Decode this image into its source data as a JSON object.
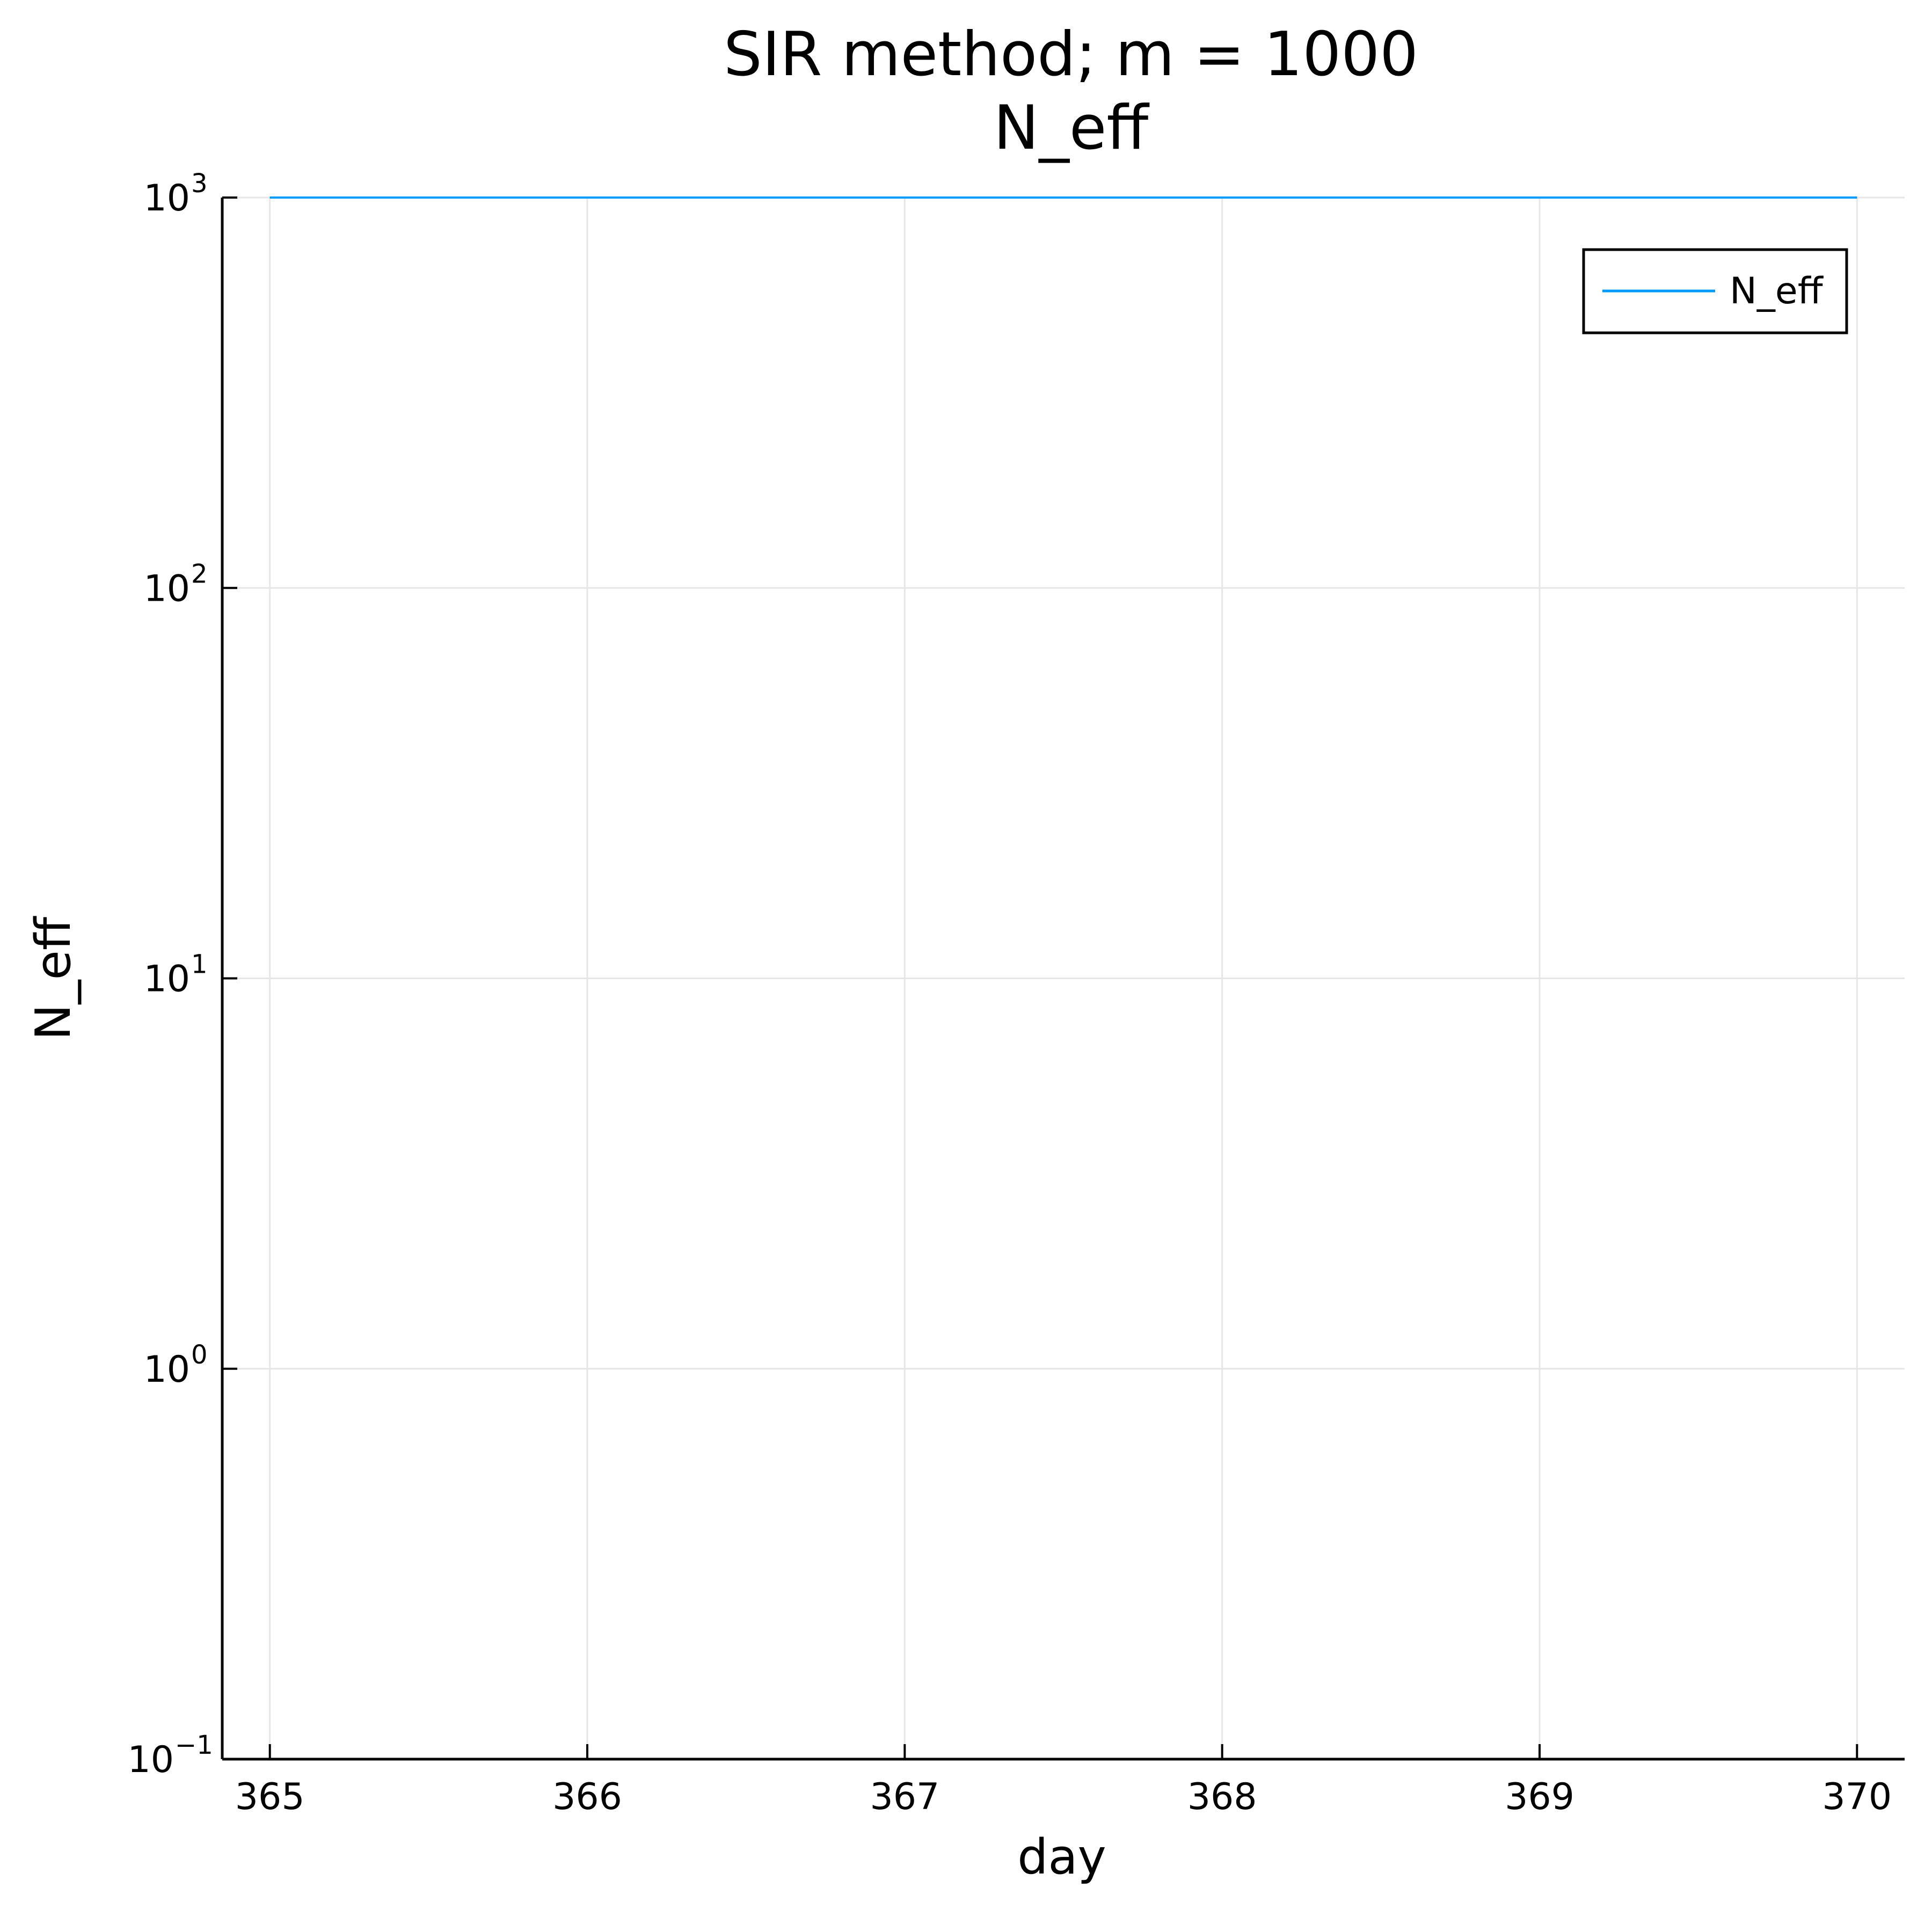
{
  "chart_data": {
    "type": "line",
    "title": "SIR method; m = 1000",
    "subtitle": "N_eff",
    "xlabel": "day",
    "ylabel": "N_eff",
    "y_scale": "log10",
    "xlim": [
      364.85,
      370.15
    ],
    "ylim": [
      0.1,
      1000
    ],
    "x_ticks": [
      365,
      366,
      367,
      368,
      369,
      370
    ],
    "x_tick_labels": [
      "365",
      "366",
      "367",
      "368",
      "369",
      "370"
    ],
    "y_ticks": [
      {
        "value": 0.1,
        "base": "10",
        "exp": "−1"
      },
      {
        "value": 1,
        "base": "10",
        "exp": "0"
      },
      {
        "value": 10,
        "base": "10",
        "exp": "1"
      },
      {
        "value": 100,
        "base": "10",
        "exp": "2"
      },
      {
        "value": 1000,
        "base": "10",
        "exp": "3"
      }
    ],
    "grid": true,
    "legend_position": "top-right",
    "series": [
      {
        "name": "N_eff",
        "color": "#009af9",
        "x": [
          365,
          366,
          367,
          368,
          369,
          370
        ],
        "y": [
          1000,
          1000,
          1000,
          1000,
          1000,
          1000
        ]
      }
    ]
  }
}
